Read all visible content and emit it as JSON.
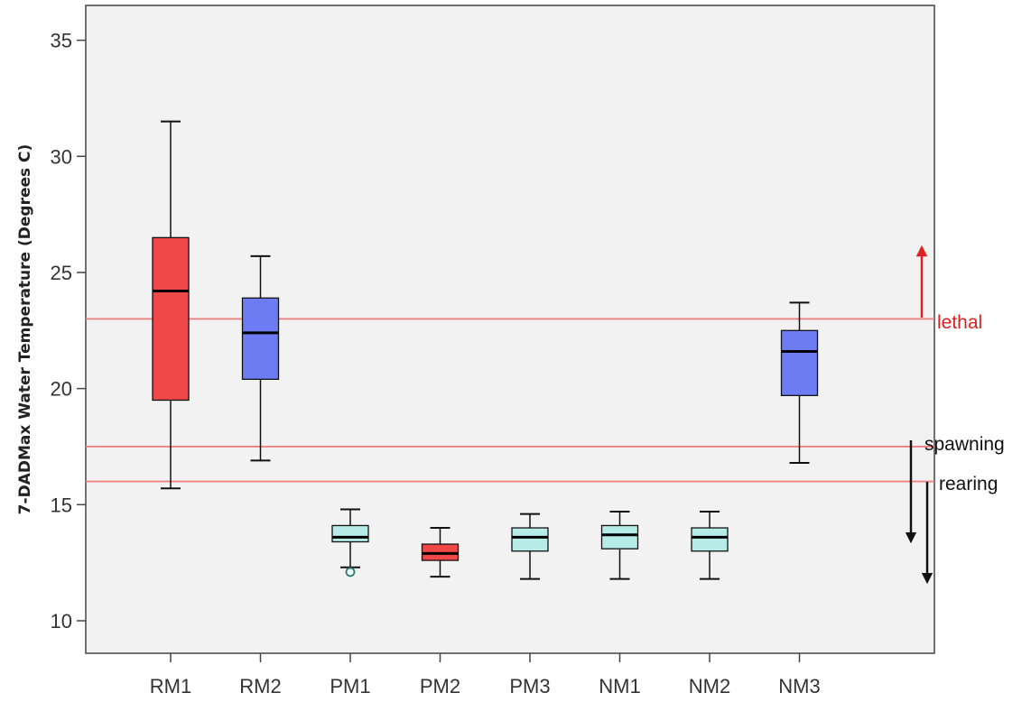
{
  "chart_data": {
    "type": "boxplot",
    "ylabel": "7-DADMax Water Temperature (Degrees C)",
    "ylim": [
      8.6,
      36.5
    ],
    "yticks": [
      10,
      15,
      20,
      25,
      30,
      35
    ],
    "categories": [
      "RM1",
      "RM2",
      "PM1",
      "PM2",
      "PM3",
      "NM1",
      "NM2",
      "NM3"
    ],
    "boxes": [
      {
        "category": "RM1",
        "whisker_low": 15.7,
        "q1": 19.5,
        "median": 24.2,
        "q3": 26.5,
        "whisker_high": 31.5,
        "color": "#f04848",
        "outliers": []
      },
      {
        "category": "RM2",
        "whisker_low": 16.9,
        "q1": 20.4,
        "median": 22.4,
        "q3": 23.9,
        "whisker_high": 25.7,
        "color": "#6d7cf2",
        "outliers": []
      },
      {
        "category": "PM1",
        "whisker_low": 12.3,
        "q1": 13.4,
        "median": 13.6,
        "q3": 14.1,
        "whisker_high": 14.8,
        "color": "#b6ece8",
        "outliers": [
          12.1
        ]
      },
      {
        "category": "PM2",
        "whisker_low": 11.9,
        "q1": 12.6,
        "median": 12.9,
        "q3": 13.3,
        "whisker_high": 14.0,
        "color": "#f04848",
        "outliers": []
      },
      {
        "category": "PM3",
        "whisker_low": 11.8,
        "q1": 13.0,
        "median": 13.6,
        "q3": 14.0,
        "whisker_high": 14.6,
        "color": "#b6ece8",
        "outliers": []
      },
      {
        "category": "NM1",
        "whisker_low": 11.8,
        "q1": 13.1,
        "median": 13.7,
        "q3": 14.1,
        "whisker_high": 14.7,
        "color": "#b6ece8",
        "outliers": []
      },
      {
        "category": "NM2",
        "whisker_low": 11.8,
        "q1": 13.0,
        "median": 13.6,
        "q3": 14.0,
        "whisker_high": 14.7,
        "color": "#b6ece8",
        "outliers": []
      },
      {
        "category": "NM3",
        "whisker_low": 16.8,
        "q1": 19.7,
        "median": 21.6,
        "q3": 22.5,
        "whisker_high": 23.7,
        "color": "#6d7cf2",
        "outliers": []
      }
    ],
    "reference_lines": [
      {
        "y": 23.0,
        "color": "#f08080"
      },
      {
        "y": 17.5,
        "color": "#f08080"
      },
      {
        "y": 16.0,
        "color": "#f08080"
      }
    ],
    "annotations": [
      {
        "text": "lethal",
        "color": "#e02020",
        "arrow": "up"
      },
      {
        "text": "spawning",
        "color": "#111111",
        "arrow": "down"
      },
      {
        "text": "rearing",
        "color": "#111111",
        "arrow": "down"
      }
    ],
    "grid": false,
    "background": "#f2f2f2"
  }
}
